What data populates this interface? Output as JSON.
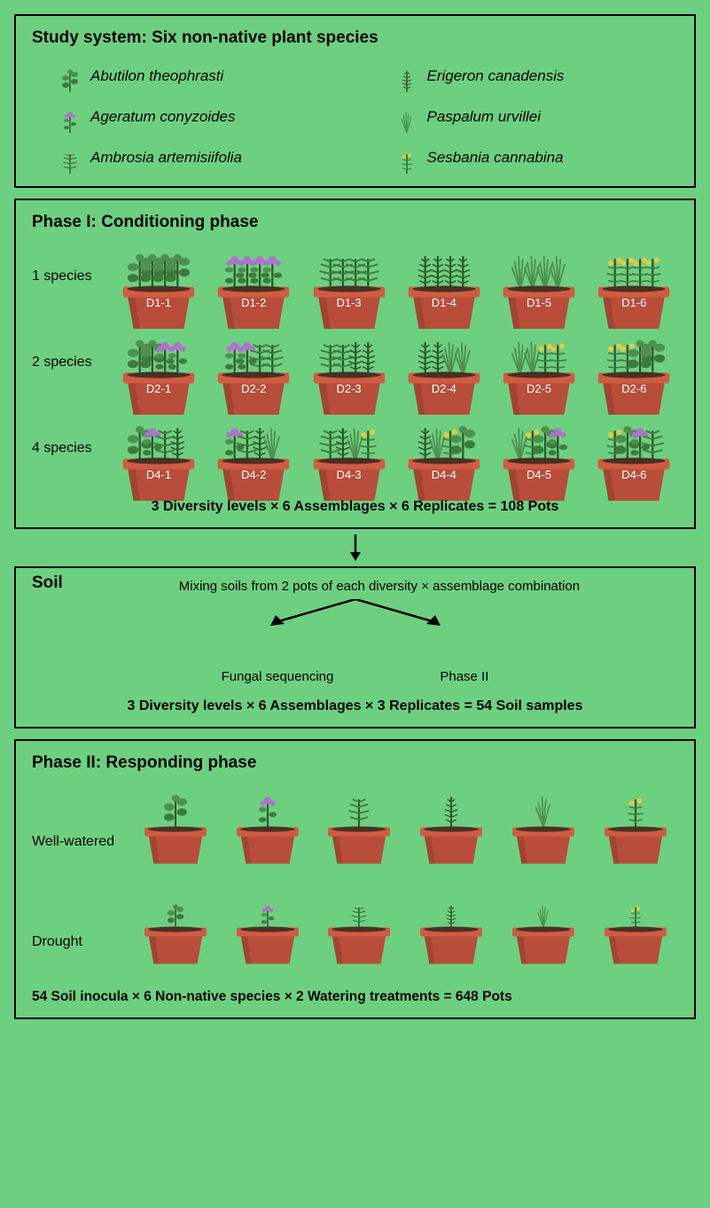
{
  "colors": {
    "background": "#6dd080",
    "border": "#000000",
    "pot_body": "#b84d3a",
    "pot_rim": "#cf5b43",
    "pot_shadow": "#8c3a2c",
    "pot_label": "#ffffff",
    "soil": "#4a3022",
    "plant_dark": "#2d5a2d",
    "plant_mid": "#3d7a3d",
    "plant_light": "#4f8f4f",
    "flower_purple": "#b070d0",
    "flower_yellow": "#e8c840"
  },
  "study_system": {
    "title": "Study system: Six non-native plant species",
    "species": [
      {
        "name": "Abutilon theophrasti",
        "icon": "broad-leaf"
      },
      {
        "name": "Erigeron canadensis",
        "icon": "conifer-like"
      },
      {
        "name": "Ageratum conyzoides",
        "icon": "purple-flower"
      },
      {
        "name": "Paspalum urvillei",
        "icon": "grass"
      },
      {
        "name": "Ambrosia artemisiifolia",
        "icon": "fern-like"
      },
      {
        "name": "Sesbania cannabina",
        "icon": "yellow-flower"
      }
    ]
  },
  "phase1": {
    "title": "Phase I: Conditioning phase",
    "rows": [
      {
        "label": "1 species",
        "pots": [
          "D1-1",
          "D1-2",
          "D1-3",
          "D1-4",
          "D1-5",
          "D1-6"
        ],
        "plant_count": 1
      },
      {
        "label": "2 species",
        "pots": [
          "D2-1",
          "D2-2",
          "D2-3",
          "D2-4",
          "D2-5",
          "D2-6"
        ],
        "plant_count": 2
      },
      {
        "label": "4 species",
        "pots": [
          "D4-1",
          "D4-2",
          "D4-3",
          "D4-4",
          "D4-5",
          "D4-6"
        ],
        "plant_count": 4
      }
    ],
    "formula": "3 Diversity levels × 6 Assemblages × 6 Replicates = 108 Pots"
  },
  "soil": {
    "title": "Soil",
    "mixing": "Mixing soils from 2 pots of each diversity × assemblage combination",
    "branch1": "Fungal sequencing",
    "branch2": "Phase II",
    "formula": "3 Diversity levels × 6 Assemblages × 3 Replicates = 54 Soil samples"
  },
  "phase2": {
    "title": "Phase II: Responding phase",
    "rows": [
      {
        "label": "Well-watered",
        "size": "normal"
      },
      {
        "label": "Drought",
        "size": "small"
      }
    ],
    "species_icons": [
      "broad-leaf",
      "purple-flower",
      "fern-like",
      "conifer-like",
      "grass",
      "yellow-flower"
    ],
    "formula": "54 Soil inocula × 6 Non-native species × 2 Watering treatments = 648 Pots"
  }
}
